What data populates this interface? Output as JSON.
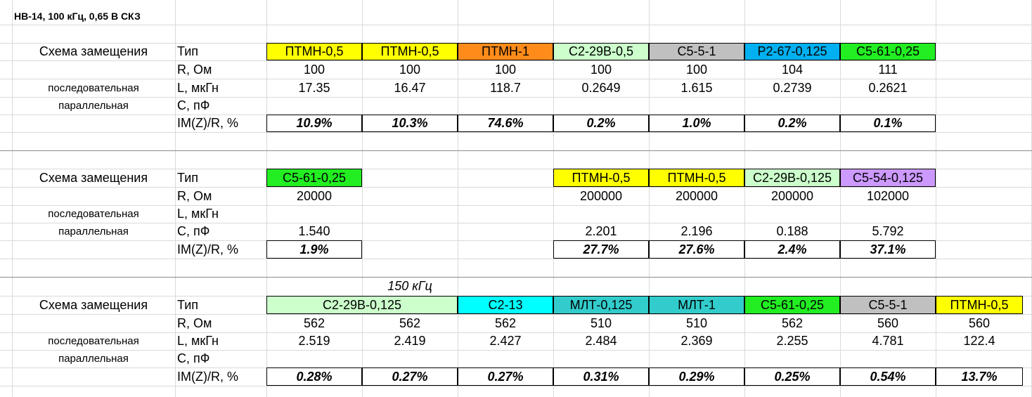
{
  "title": "НВ-14, 100 кГц, 0,65 В СКЗ",
  "row_labels": {
    "scheme": "Схема замещения",
    "series": "последовательная",
    "parallel": "параллельная",
    "type": "Тип",
    "r": "R, Ом",
    "l": "L, мкГн",
    "c": "C, пФ",
    "im": "IM(Z)/R, %"
  },
  "colors": {
    "yellow": "#ffff00",
    "orange": "#ff8c1a",
    "lightgreen": "#ccffcc",
    "gray": "#c0c0c0",
    "blue": "#00b0f0",
    "green": "#22ee22",
    "violet": "#cc99ff",
    "cyan": "#00ffff",
    "teal": "#33cccc"
  },
  "section1": {
    "columns": [
      {
        "type": "ПТМН-0,5",
        "r": "100",
        "l": "17.35",
        "im": "10.9%"
      },
      {
        "type": "ПТМН-0,5",
        "r": "100",
        "l": "16.47",
        "im": "10.3%"
      },
      {
        "type": "ПТМН-1",
        "r": "100",
        "l": "118.7",
        "im": "74.6%"
      },
      {
        "type": "С2-29В-0,5",
        "r": "100",
        "l": "0.2649",
        "im": "0.2%"
      },
      {
        "type": "С5-5-1",
        "r": "100",
        "l": "1.615",
        "im": "1.0%"
      },
      {
        "type": "Р2-67-0,125",
        "r": "104",
        "l": "0.2739",
        "im": "0.2%"
      },
      {
        "type": "С5-61-0,25",
        "r": "111",
        "l": "0.2621",
        "im": "0.1%"
      }
    ]
  },
  "section2": {
    "columns": [
      {
        "type": "С5-61-0,25",
        "r": "20000",
        "c": "1.540",
        "im": "1.9%"
      },
      {
        "type": "ПТМН-0,5",
        "r": "200000",
        "c": "2.201",
        "im": "27.7%"
      },
      {
        "type": "ПТМН-0,5",
        "r": "200000",
        "c": "2.196",
        "im": "27.6%"
      },
      {
        "type": "С2-29В-0,125",
        "r": "200000",
        "c": "0.188",
        "im": "2.4%"
      },
      {
        "type": "С5-54-0,125",
        "r": "102000",
        "c": "5.792",
        "im": "37.1%"
      }
    ]
  },
  "section3": {
    "freq_note": "150 кГц",
    "types": [
      "С2-29В-0,125",
      "С2-13",
      "МЛТ-0,125",
      "МЛТ-1",
      "С5-61-0,25",
      "С5-5-1",
      "ПТМН-0,5"
    ],
    "columns": [
      {
        "r": "562",
        "l": "2.519",
        "im": "0.28%"
      },
      {
        "r": "562",
        "l": "2.419",
        "im": "0.27%"
      },
      {
        "r": "562",
        "l": "2.427",
        "im": "0.27%"
      },
      {
        "r": "510",
        "l": "2.484",
        "im": "0.31%"
      },
      {
        "r": "510",
        "l": "2.369",
        "im": "0.29%"
      },
      {
        "r": "562",
        "l": "2.255",
        "im": "0.25%"
      },
      {
        "r": "560",
        "l": "4.781",
        "im": "0.54%"
      },
      {
        "r": "560",
        "l": "122.4",
        "im": "13.7%"
      }
    ]
  }
}
